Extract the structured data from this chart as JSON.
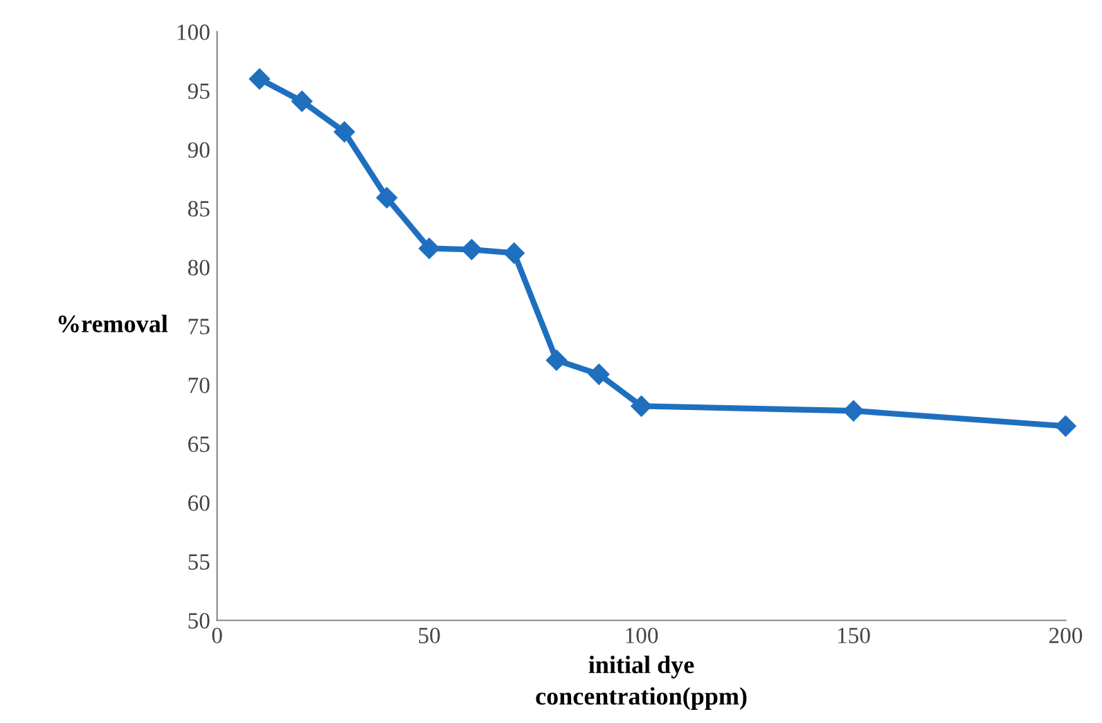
{
  "chart_data": {
    "type": "line",
    "xlabel": "initial dye\nconcentration(ppm)",
    "ylabel": "%removal",
    "x": [
      10,
      20,
      30,
      40,
      50,
      60,
      70,
      80,
      90,
      100,
      150,
      200
    ],
    "series": [
      {
        "color": "#1f6fbf",
        "values": [
          96.0,
          94.1,
          91.5,
          85.9,
          81.6,
          81.5,
          81.2,
          72.1,
          70.9,
          68.2,
          67.8,
          66.5
        ]
      }
    ],
    "xlim": [
      0,
      200
    ],
    "xticks": [
      0,
      50,
      100,
      150,
      200
    ],
    "ylim": [
      50,
      100
    ],
    "yticks": [
      50,
      55,
      60,
      65,
      70,
      75,
      80,
      85,
      90,
      95,
      100
    ],
    "grid": false,
    "legend": false,
    "marker": "diamond",
    "line_style": "solid"
  }
}
